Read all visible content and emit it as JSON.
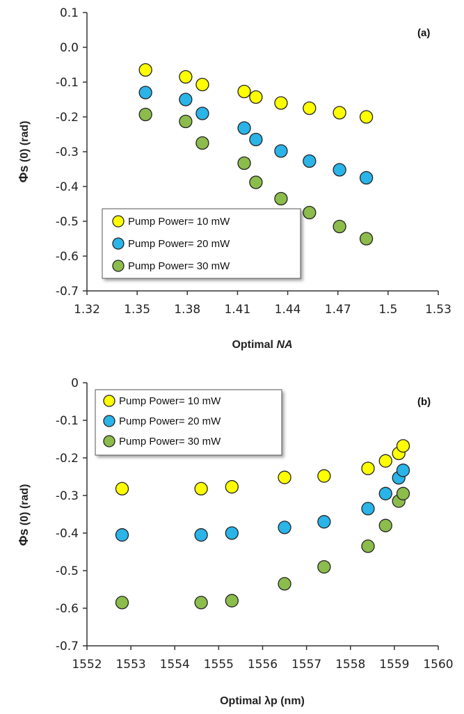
{
  "colors": {
    "s10": "#ffff00",
    "s20": "#2ab4e8",
    "s30": "#8cbc4c",
    "edge": "#222222"
  },
  "chart_data": [
    {
      "type": "scatter",
      "panel_label": "(a)",
      "xlabel": "Optimal ",
      "xlabel_italic": "NA",
      "ylabel_main": "Φs",
      "ylabel_rest": "(0) (rad)",
      "xlim": [
        1.32,
        1.53
      ],
      "ylim": [
        -0.7,
        0.1
      ],
      "xticks": [
        "1.32",
        "1.35",
        "1.38",
        "1.41",
        "1.44",
        "1.47",
        "1.5",
        "1.53"
      ],
      "yticks": [
        "0.1",
        "0.0",
        "-0.1",
        "-0.2",
        "-0.3",
        "-0.4",
        "-0.5",
        "-0.6",
        "-0.7"
      ],
      "legend_position": "bottom-left",
      "series": [
        {
          "name": "Pump Power= 10 mW",
          "x": [
            1.355,
            1.379,
            1.389,
            1.414,
            1.421,
            1.436,
            1.453,
            1.471,
            1.487
          ],
          "y": [
            -0.065,
            -0.085,
            -0.107,
            -0.127,
            -0.143,
            -0.16,
            -0.175,
            -0.188,
            -0.2
          ]
        },
        {
          "name": "Pump Power= 20 mW",
          "x": [
            1.355,
            1.379,
            1.389,
            1.414,
            1.421,
            1.436,
            1.453,
            1.471,
            1.487
          ],
          "y": [
            -0.13,
            -0.15,
            -0.19,
            -0.232,
            -0.265,
            -0.298,
            -0.327,
            -0.352,
            -0.375
          ]
        },
        {
          "name": "Pump Power= 30 mW",
          "x": [
            1.355,
            1.379,
            1.389,
            1.414,
            1.421,
            1.436,
            1.453,
            1.471,
            1.487
          ],
          "y": [
            -0.193,
            -0.213,
            -0.275,
            -0.333,
            -0.388,
            -0.435,
            -0.475,
            -0.515,
            -0.55
          ]
        }
      ]
    },
    {
      "type": "scatter",
      "panel_label": "(b)",
      "xlabel": "Optimal ",
      "xlabel_italic": "λp (nm)",
      "ylabel_main": "Φs",
      "ylabel_rest": "(0) (rad)",
      "xlim": [
        1552,
        1560
      ],
      "ylim": [
        -0.7,
        0
      ],
      "xticks": [
        "1552",
        "1553",
        "1554",
        "1555",
        "1556",
        "1557",
        "1558",
        "1559",
        "1560"
      ],
      "yticks": [
        "0",
        "-0.1",
        "-0.2",
        "-0.3",
        "-0.4",
        "-0.5",
        "-0.6",
        "-0.7"
      ],
      "legend_position": "top-left",
      "series": [
        {
          "name": "Pump Power= 10 mW",
          "x": [
            1552.8,
            1554.6,
            1555.3,
            1556.5,
            1557.4,
            1558.4,
            1558.8,
            1559.1,
            1559.2
          ],
          "y": [
            -0.282,
            -0.282,
            -0.277,
            -0.252,
            -0.248,
            -0.228,
            -0.208,
            -0.188,
            -0.168
          ]
        },
        {
          "name": "Pump Power= 20 mW",
          "x": [
            1552.8,
            1554.6,
            1555.3,
            1556.5,
            1557.4,
            1558.4,
            1558.8,
            1559.1,
            1559.2
          ],
          "y": [
            -0.405,
            -0.405,
            -0.4,
            -0.385,
            -0.37,
            -0.335,
            -0.295,
            -0.253,
            -0.233
          ]
        },
        {
          "name": "Pump Power= 30 mW",
          "x": [
            1552.8,
            1554.6,
            1555.3,
            1556.5,
            1557.4,
            1558.4,
            1558.8,
            1559.1,
            1559.2
          ],
          "y": [
            -0.585,
            -0.585,
            -0.58,
            -0.535,
            -0.49,
            -0.435,
            -0.38,
            -0.315,
            -0.295
          ]
        }
      ]
    }
  ]
}
